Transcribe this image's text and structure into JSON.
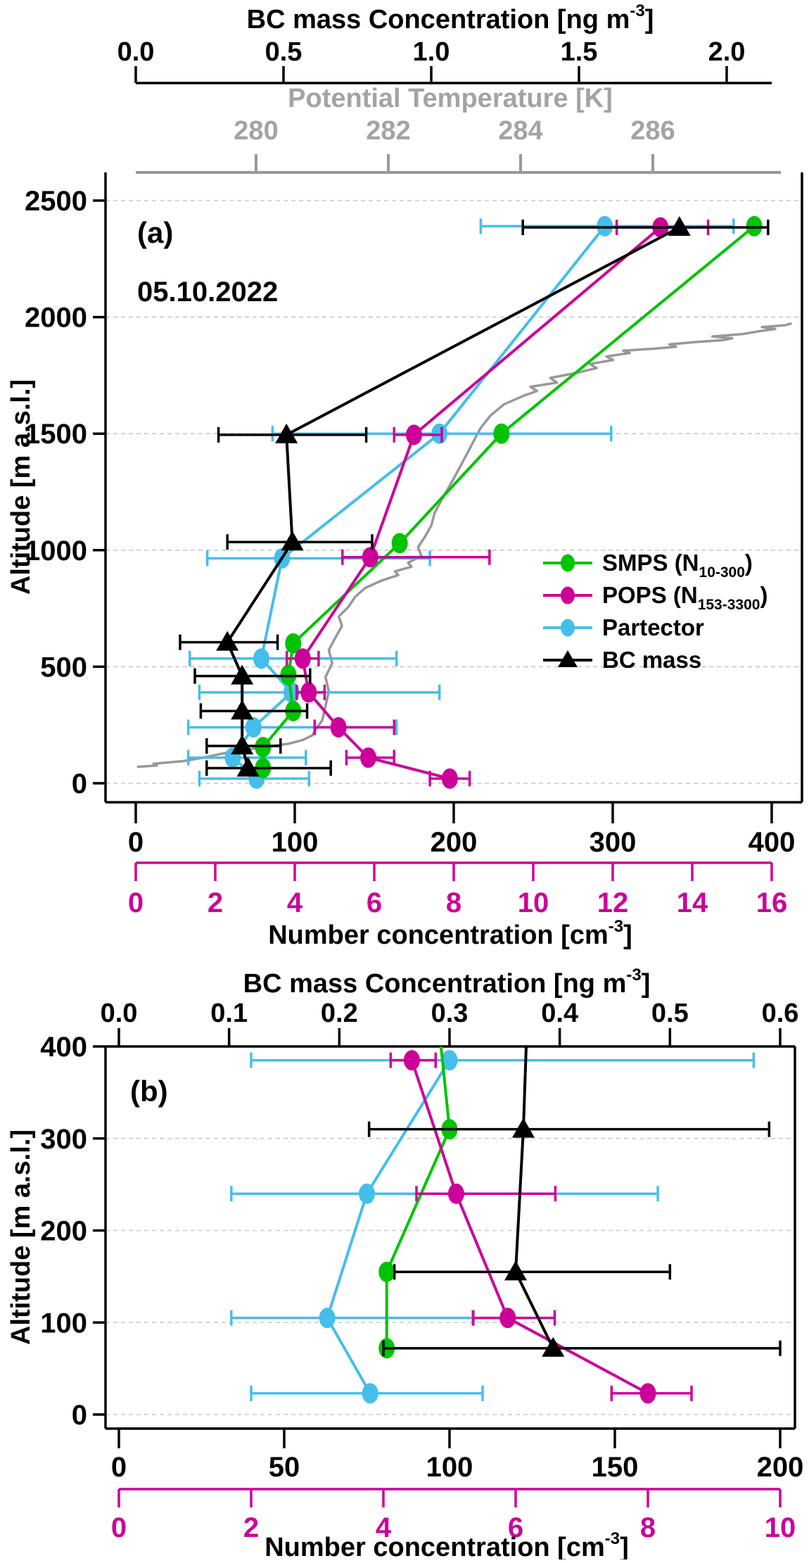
{
  "figure": {
    "panel_a_tag": "(a)",
    "panel_b_tag": "(b)",
    "date_label": "05.10.2022",
    "colors": {
      "smps": "#00C400",
      "pops": "#CC0099",
      "partector": "#45BEEB",
      "bc": "#000000",
      "temp_line": "#989898",
      "temp_text": "#A3A3A3",
      "grid": "#C8C8C8",
      "axis": "#000000"
    },
    "titles": {
      "bc_axis": [
        {
          "t": "BC mass Concentration [ng m"
        },
        {
          "t": "-3",
          "pos": "sup"
        },
        {
          "t": "]"
        }
      ],
      "number_axis": [
        {
          "t": "Number concentration [cm"
        },
        {
          "t": "-3",
          "pos": "sup"
        },
        {
          "t": "]"
        }
      ],
      "pt_axis": "Potential Temperature [K]",
      "y_axis": "Altitude [m a.s.l.]"
    },
    "legend": [
      {
        "series": "smps",
        "marker": "circle",
        "parts": [
          {
            "t": "SMPS (N"
          },
          {
            "t": "10-300",
            "pos": "sub"
          },
          {
            "t": ")"
          }
        ]
      },
      {
        "series": "pops",
        "marker": "circle",
        "parts": [
          {
            "t": "POPS (N"
          },
          {
            "t": "153-3300",
            "pos": "sub"
          },
          {
            "t": ")"
          }
        ]
      },
      {
        "series": "partector",
        "marker": "circle",
        "parts": [
          {
            "t": "Partector"
          }
        ]
      },
      {
        "series": "bc",
        "marker": "triangle",
        "parts": [
          {
            "t": "BC mass"
          }
        ]
      }
    ]
  },
  "chart_data": [
    {
      "type": "scatter",
      "panel": "a",
      "ylabel": "Altitude [m a.s.l.]",
      "ylim": [
        0,
        2500
      ],
      "y_ticks": {
        "vals": [
          0,
          500,
          1000,
          1500,
          2000,
          2500
        ],
        "labels": [
          "0",
          "500",
          "1000",
          "1500",
          "2000",
          "2500"
        ]
      },
      "x_number": {
        "label": "Number concentration [cm-3]",
        "vals": [
          0,
          100,
          200,
          300,
          400
        ],
        "labels": [
          "0",
          "100",
          "200",
          "300",
          "400"
        ],
        "range": [
          0,
          400
        ]
      },
      "x_magenta": {
        "vals": [
          0,
          2,
          4,
          6,
          8,
          10,
          12,
          14,
          16
        ],
        "labels": [
          "0",
          "2",
          "4",
          "6",
          "8",
          "10",
          "12",
          "14",
          "16"
        ],
        "range": [
          0,
          16
        ]
      },
      "x_bc": {
        "label": "BC mass Concentration [ng m-3]",
        "vals": [
          0,
          0.5,
          1,
          1.5,
          2
        ],
        "labels": [
          "0.0",
          "0.5",
          "1.0",
          "1.5",
          "2.0"
        ],
        "range": [
          0,
          2
        ]
      },
      "x_pt": {
        "label": "Potential Temperature [K]",
        "vals": [
          280,
          282,
          284,
          286
        ],
        "labels": [
          "280",
          "282",
          "284",
          "286"
        ]
      },
      "series": [
        {
          "name": "partector",
          "axis": "number",
          "marker": "circle",
          "points": [
            [
              295,
              2390,
              217,
              376
            ],
            [
              191,
              1500,
              86,
              299
            ],
            [
              92,
              965,
              45,
              185
            ],
            [
              79,
              535,
              34,
              164
            ],
            [
              98,
              390,
              40,
              191
            ],
            [
              74,
              240,
              33,
              164
            ],
            [
              61,
              110,
              33,
              107
            ],
            [
              76,
              20,
              40,
              109
            ]
          ]
        },
        {
          "name": "smps",
          "axis": "number",
          "marker": "circle",
          "points": [
            [
              389,
              2390,
              null,
              null
            ],
            [
              230,
              1500,
              null,
              null
            ],
            [
              166,
              1030,
              null,
              null
            ],
            [
              99,
              600,
              null,
              null
            ],
            [
              96,
              465,
              null,
              null
            ],
            [
              99,
              310,
              null,
              null
            ],
            [
              80,
              155,
              null,
              null
            ],
            [
              80,
              65,
              null,
              null
            ]
          ]
        },
        {
          "name": "pops",
          "axis": "magenta",
          "marker": "circle",
          "points": [
            [
              13.2,
              2385,
              12.1,
              14.4
            ],
            [
              7.0,
              1495,
              6.5,
              7.7
            ],
            [
              5.9,
              970,
              5.2,
              8.9
            ],
            [
              4.2,
              535,
              3.8,
              4.6
            ],
            [
              4.35,
              390,
              4.05,
              4.75
            ],
            [
              5.1,
              240,
              4.5,
              6.5
            ],
            [
              5.85,
              110,
              5.3,
              6.5
            ],
            [
              7.9,
              20,
              7.4,
              8.4
            ]
          ]
        },
        {
          "name": "bc",
          "axis": "bc",
          "marker": "triangle",
          "points": [
            [
              1.84,
              2385,
              1.31,
              2.14
            ],
            [
              0.51,
              1495,
              0.28,
              0.78
            ],
            [
              0.53,
              1035,
              0.31,
              0.8
            ],
            [
              0.31,
              605,
              0.15,
              0.48
            ],
            [
              0.36,
              460,
              0.2,
              0.59
            ],
            [
              0.36,
              310,
              0.22,
              0.58
            ],
            [
              0.36,
              160,
              0.24,
              0.49
            ],
            [
              0.38,
              65,
              0.24,
              0.66
            ]
          ]
        }
      ],
      "temp_profile": [
        [
          278.2,
          70
        ],
        [
          278.5,
          76
        ],
        [
          278.45,
          84
        ],
        [
          278.9,
          95
        ],
        [
          279.2,
          110
        ],
        [
          279.5,
          128
        ],
        [
          279.8,
          142
        ],
        [
          280.2,
          158
        ],
        [
          280.5,
          170
        ],
        [
          280.7,
          185
        ],
        [
          280.85,
          205
        ],
        [
          280.9,
          230
        ],
        [
          281.0,
          270
        ],
        [
          281.05,
          330
        ],
        [
          281.1,
          395
        ],
        [
          281.05,
          455
        ],
        [
          281.15,
          515
        ],
        [
          281.1,
          572
        ],
        [
          281.2,
          625
        ],
        [
          281.3,
          675
        ],
        [
          281.25,
          715
        ],
        [
          281.4,
          758
        ],
        [
          281.5,
          800
        ],
        [
          281.65,
          838
        ],
        [
          281.9,
          870
        ],
        [
          282.15,
          893
        ],
        [
          282.1,
          909
        ],
        [
          282.35,
          929
        ],
        [
          282.3,
          946
        ],
        [
          282.5,
          976
        ],
        [
          282.45,
          1013
        ],
        [
          282.55,
          1056
        ],
        [
          282.65,
          1106
        ],
        [
          282.7,
          1159
        ],
        [
          282.8,
          1213
        ],
        [
          282.9,
          1263
        ],
        [
          283.0,
          1313
        ],
        [
          283.1,
          1366
        ],
        [
          283.2,
          1419
        ],
        [
          283.3,
          1473
        ],
        [
          283.4,
          1526
        ],
        [
          283.55,
          1579
        ],
        [
          283.75,
          1626
        ],
        [
          284.05,
          1663
        ],
        [
          284.25,
          1683
        ],
        [
          284.15,
          1701
        ],
        [
          284.55,
          1719
        ],
        [
          284.45,
          1739
        ],
        [
          284.85,
          1761
        ],
        [
          285.15,
          1781
        ],
        [
          285.05,
          1799
        ],
        [
          285.4,
          1816
        ],
        [
          285.3,
          1831
        ],
        [
          285.65,
          1846
        ],
        [
          285.55,
          1856
        ],
        [
          286.05,
          1865
        ],
        [
          286.35,
          1873
        ],
        [
          286.25,
          1883
        ],
        [
          286.65,
          1893
        ],
        [
          287.05,
          1901
        ],
        [
          287.2,
          1909
        ],
        [
          286.9,
          1917
        ],
        [
          287.35,
          1927
        ],
        [
          287.6,
          1939
        ],
        [
          287.85,
          1949
        ],
        [
          287.65,
          1957
        ],
        [
          288.0,
          1965
        ],
        [
          288.1,
          1973
        ]
      ]
    },
    {
      "type": "scatter",
      "panel": "b",
      "ylabel": "Altitude [m a.s.l.]",
      "ylim": [
        0,
        400
      ],
      "y_ticks": {
        "vals": [
          0,
          100,
          200,
          300,
          400
        ],
        "labels": [
          "0",
          "100",
          "200",
          "300",
          "400"
        ]
      },
      "x_number": {
        "label": "Number concentration [cm-3]",
        "vals": [
          0,
          50,
          100,
          150,
          200
        ],
        "labels": [
          "0",
          "50",
          "100",
          "150",
          "200"
        ],
        "range": [
          0,
          200
        ]
      },
      "x_magenta": {
        "vals": [
          0,
          2,
          4,
          6,
          8,
          10
        ],
        "labels": [
          "0",
          "2",
          "4",
          "6",
          "8",
          "10"
        ],
        "range": [
          0,
          10
        ]
      },
      "x_bc": {
        "label": "BC mass Concentration [ng m-3]",
        "vals": [
          0,
          0.1,
          0.2,
          0.3,
          0.4,
          0.5,
          0.6
        ],
        "labels": [
          "0.0",
          "0.1",
          "0.2",
          "0.3",
          "0.4",
          "0.5",
          "0.6"
        ],
        "range": [
          0,
          0.6
        ]
      },
      "series": [
        {
          "name": "partector",
          "axis": "number",
          "marker": "circle",
          "points": [
            [
              100,
              385,
              40,
              192
            ],
            [
              75,
              240,
              34,
              163
            ],
            [
              63,
              105,
              34,
              107
            ],
            [
              76,
              23,
              40,
              110
            ]
          ]
        },
        {
          "name": "smps",
          "axis": "number",
          "marker": "circle",
          "points": [
            [
              97,
              415,
              null,
              null
            ],
            [
              100,
              310,
              null,
              null
            ],
            [
              81,
              155,
              null,
              null
            ],
            [
              81,
              72,
              null,
              null
            ]
          ]
        },
        {
          "name": "pops",
          "axis": "magenta",
          "marker": "circle",
          "points": [
            [
              4.43,
              385,
              4.11,
              4.79
            ],
            [
              5.1,
              240,
              4.5,
              6.6
            ],
            [
              5.88,
              105,
              5.36,
              6.59
            ],
            [
              8.0,
              23,
              7.45,
              8.66
            ]
          ]
        },
        {
          "name": "bc",
          "axis": "bc",
          "marker": "triangle",
          "points": [
            [
              0.37,
              415,
              null,
              null
            ],
            [
              0.367,
              310,
              0.227,
              0.59
            ],
            [
              0.36,
              155,
              0.25,
              0.5
            ],
            [
              0.394,
              72,
              0.24,
              0.6
            ]
          ]
        }
      ]
    }
  ]
}
